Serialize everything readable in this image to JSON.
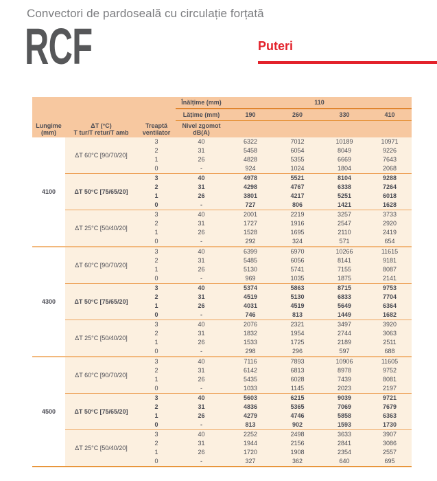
{
  "page": {
    "subtitle": "Convectori de pardoseală cu circulație forțată",
    "product": "RCF",
    "section_label": "Puteri"
  },
  "colors": {
    "accent_red": "#e3222b",
    "table_header_bg": "#f7c8a0",
    "table_body_bg": "#fcf0e0",
    "separator_orange": "#e8963c",
    "text_dark": "#4b4c54",
    "subtitle_gray": "#7b7c7f",
    "product_gray": "#565759"
  },
  "table": {
    "header": {
      "height_label": "Înălțime (mm)",
      "height_value": "110",
      "width_label": "Lățime (mm)",
      "width_values": [
        "190",
        "260",
        "330",
        "410"
      ],
      "col1_line1": "Lungime",
      "col1_line2": "(mm)",
      "col2_line1": "ΔT (°C)",
      "col2_line2": "T tur/T retur/T amb",
      "col3_line1": "Treaptă",
      "col3_line2": "ventilator",
      "col4_line1": "Nivel zgomot",
      "col4_line2": "dB(A)"
    },
    "groups": [
      {
        "length": "4100",
        "subgroups": [
          {
            "dt": "ΔT 60°C [90/70/20]",
            "bold": false,
            "rows": [
              [
                "3",
                "40",
                "6322",
                "7012",
                "10189",
                "10971"
              ],
              [
                "2",
                "31",
                "5458",
                "6054",
                "8049",
                "9226"
              ],
              [
                "1",
                "26",
                "4828",
                "5355",
                "6669",
                "7643"
              ],
              [
                "0",
                "-",
                "924",
                "1024",
                "1804",
                "2068"
              ]
            ]
          },
          {
            "dt": "ΔT 50°C [75/65/20]",
            "bold": true,
            "rows": [
              [
                "3",
                "40",
                "4978",
                "5521",
                "8104",
                "9288"
              ],
              [
                "2",
                "31",
                "4298",
                "4767",
                "6338",
                "7264"
              ],
              [
                "1",
                "26",
                "3801",
                "4217",
                "5251",
                "6018"
              ],
              [
                "0",
                "-",
                "727",
                "806",
                "1421",
                "1628"
              ]
            ]
          },
          {
            "dt": "ΔT 25°C [50/40/20]",
            "bold": false,
            "rows": [
              [
                "3",
                "40",
                "2001",
                "2219",
                "3257",
                "3733"
              ],
              [
                "2",
                "31",
                "1727",
                "1916",
                "2547",
                "2920"
              ],
              [
                "1",
                "26",
                "1528",
                "1695",
                "2110",
                "2419"
              ],
              [
                "0",
                "-",
                "292",
                "324",
                "571",
                "654"
              ]
            ]
          }
        ]
      },
      {
        "length": "4300",
        "subgroups": [
          {
            "dt": "ΔT 60°C [90/70/20]",
            "bold": false,
            "rows": [
              [
                "3",
                "40",
                "6399",
                "6970",
                "10266",
                "11615"
              ],
              [
                "2",
                "31",
                "5485",
                "6056",
                "8141",
                "9181"
              ],
              [
                "1",
                "26",
                "5130",
                "5741",
                "7155",
                "8087"
              ],
              [
                "0",
                "-",
                "969",
                "1035",
                "1875",
                "2141"
              ]
            ]
          },
          {
            "dt": "ΔT 50°C [75/65/20]",
            "bold": true,
            "rows": [
              [
                "3",
                "40",
                "5374",
                "5863",
                "8715",
                "9753"
              ],
              [
                "2",
                "31",
                "4519",
                "5130",
                "6833",
                "7704"
              ],
              [
                "1",
                "26",
                "4031",
                "4519",
                "5649",
                "6364"
              ],
              [
                "0",
                "-",
                "746",
                "813",
                "1449",
                "1682"
              ]
            ]
          },
          {
            "dt": "ΔT 25°C [50/40/20]",
            "bold": false,
            "rows": [
              [
                "3",
                "40",
                "2076",
                "2321",
                "3497",
                "3920"
              ],
              [
                "2",
                "31",
                "1832",
                "1954",
                "2744",
                "3063"
              ],
              [
                "1",
                "26",
                "1533",
                "1725",
                "2189",
                "2511"
              ],
              [
                "0",
                "-",
                "298",
                "296",
                "597",
                "688"
              ]
            ]
          }
        ]
      },
      {
        "length": "4500",
        "subgroups": [
          {
            "dt": "ΔT 60°C [90/70/20]",
            "bold": false,
            "rows": [
              [
                "3",
                "40",
                "7116",
                "7893",
                "10906",
                "11605"
              ],
              [
                "2",
                "31",
                "6142",
                "6813",
                "8978",
                "9752"
              ],
              [
                "1",
                "26",
                "5435",
                "6028",
                "7439",
                "8081"
              ],
              [
                "0",
                "-",
                "1033",
                "1145",
                "2023",
                "2197"
              ]
            ]
          },
          {
            "dt": "ΔT 50°C [75/65/20]",
            "bold": true,
            "rows": [
              [
                "3",
                "40",
                "5603",
                "6215",
                "9039",
                "9721"
              ],
              [
                "2",
                "31",
                "4836",
                "5365",
                "7069",
                "7679"
              ],
              [
                "1",
                "26",
                "4279",
                "4746",
                "5858",
                "6363"
              ],
              [
                "0",
                "-",
                "813",
                "902",
                "1593",
                "1730"
              ]
            ]
          },
          {
            "dt": "ΔT 25°C [50/40/20]",
            "bold": false,
            "rows": [
              [
                "3",
                "40",
                "2252",
                "2498",
                "3633",
                "3907"
              ],
              [
                "2",
                "31",
                "1944",
                "2156",
                "2841",
                "3086"
              ],
              [
                "1",
                "26",
                "1720",
                "1908",
                "2354",
                "2557"
              ],
              [
                "0",
                "-",
                "327",
                "362",
                "640",
                "695"
              ]
            ]
          }
        ]
      }
    ]
  }
}
